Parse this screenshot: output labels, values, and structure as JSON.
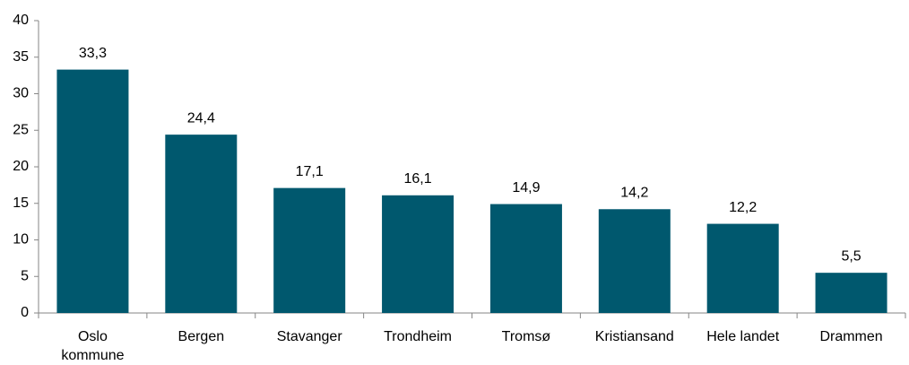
{
  "chart_data": {
    "type": "bar",
    "categories": [
      "Oslo\nkommune",
      "Bergen",
      "Stavanger",
      "Trondheim",
      "Tromsø",
      "Kristiansand",
      "Hele landet",
      "Drammen"
    ],
    "values": [
      33.3,
      24.4,
      17.1,
      16.1,
      14.9,
      14.2,
      12.2,
      5.5
    ],
    "value_labels": [
      "33,3",
      "24,4",
      "17,1",
      "16,1",
      "14,9",
      "14,2",
      "12,2",
      "5,5"
    ],
    "color": "#00586e",
    "ylim": [
      0,
      40
    ],
    "yticks": [
      0,
      5,
      10,
      15,
      20,
      25,
      30,
      35,
      40
    ],
    "grid": false
  }
}
